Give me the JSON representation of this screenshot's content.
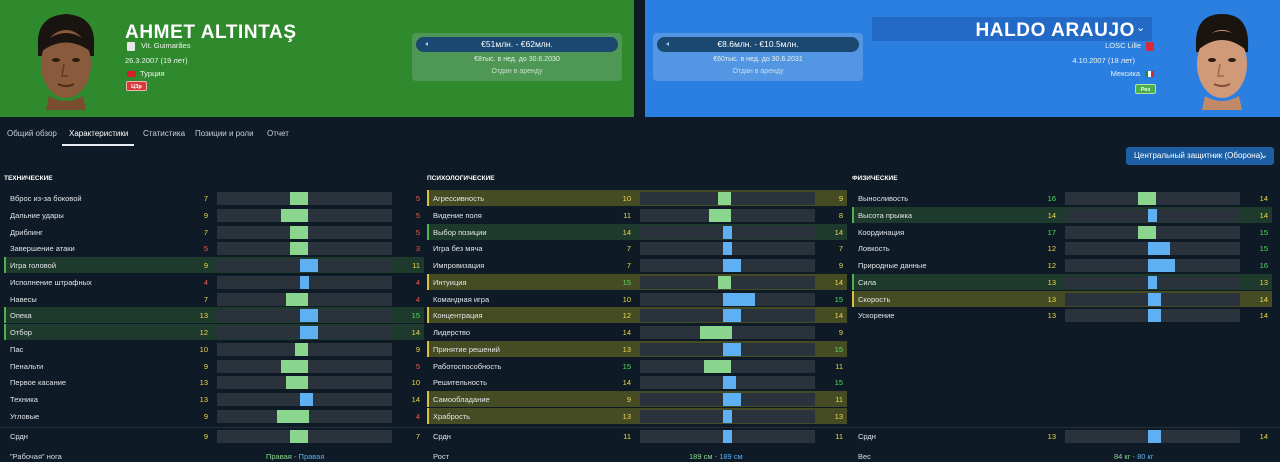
{
  "left_player": {
    "name": "AHMET ALTINTAŞ",
    "club": "Vit. Guimarães",
    "birth": "26.3.2007 (19 лет)",
    "nation": "Турция",
    "badge": "ЦЗр",
    "value": "€51млн. - €62млн.",
    "wage": "€8тыс. в нед. до 30.6.2030",
    "status": "Отдан в аренду"
  },
  "right_player": {
    "name": "HALDO ARAUJO",
    "club": "LOSC Lille",
    "birth": "4.10.2007 (18 лет)",
    "nation": "Мексика",
    "badge": "Рез",
    "value": "€8.6млн. - €10.5млн.",
    "wage": "€60тыс. в нед. до 30.6.2031",
    "status": "Отдан в аренду"
  },
  "tabs": [
    "Общий обзор",
    "Характеристики",
    "Статистика",
    "Позиции и роли",
    "Отчет"
  ],
  "role_select": "Центральный защитник (Оборона)",
  "colors": {
    "left_header": "#2f8a2e",
    "right_header": "#2b7fe0",
    "left_bar": "#8ad68f",
    "right_bar": "#5eb0f3",
    "hi_green": "#4fe05a",
    "hi_yellow": "#f0d84a",
    "low_red": "#f05a4a"
  },
  "sections": [
    {
      "title": "ТЕХНИЧЕСКИЕ",
      "attrs": [
        {
          "name": "Вброс из-за боковой",
          "left": 7,
          "right": 5,
          "hl": ""
        },
        {
          "name": "Дальние удары",
          "left": 9,
          "right": 5,
          "hl": ""
        },
        {
          "name": "Дриблинг",
          "left": 7,
          "right": 5,
          "hl": ""
        },
        {
          "name": "Завершение атаки",
          "left": 5,
          "right": 3,
          "hl": ""
        },
        {
          "name": "Игра головой",
          "left": 9,
          "right": 11,
          "hl": "g"
        },
        {
          "name": "Исполнение штрафных",
          "left": 4,
          "right": 4,
          "hl": ""
        },
        {
          "name": "Навесы",
          "left": 7,
          "right": 4,
          "hl": ""
        },
        {
          "name": "Опека",
          "left": 13,
          "right": 15,
          "hl": "g"
        },
        {
          "name": "Отбор",
          "left": 12,
          "right": 14,
          "hl": "g"
        },
        {
          "name": "Пас",
          "left": 10,
          "right": 9,
          "hl": ""
        },
        {
          "name": "Пенальти",
          "left": 9,
          "right": 5,
          "hl": ""
        },
        {
          "name": "Первое касание",
          "left": 13,
          "right": 10,
          "hl": ""
        },
        {
          "name": "Техника",
          "left": 13,
          "right": 14,
          "hl": ""
        },
        {
          "name": "Угловые",
          "left": 9,
          "right": 4,
          "hl": ""
        }
      ],
      "avg": {
        "name": "Срдн",
        "left": 9,
        "right": 7
      }
    },
    {
      "title": "ПСИХОЛОГИЧЕСКИЕ",
      "attrs": [
        {
          "name": "Агрессивность",
          "left": 10,
          "right": 9,
          "hl": "y"
        },
        {
          "name": "Видение поля",
          "left": 11,
          "right": 8,
          "hl": ""
        },
        {
          "name": "Выбор позиции",
          "left": 14,
          "right": 14,
          "hl": "g"
        },
        {
          "name": "Игра без мяча",
          "left": 7,
          "right": 7,
          "hl": ""
        },
        {
          "name": "Импровизация",
          "left": 7,
          "right": 9,
          "hl": ""
        },
        {
          "name": "Интуиция",
          "left": 15,
          "right": 14,
          "hl": "y"
        },
        {
          "name": "Командная игра",
          "left": 10,
          "right": 15,
          "hl": ""
        },
        {
          "name": "Концентрация",
          "left": 12,
          "right": 14,
          "hl": "y"
        },
        {
          "name": "Лидерство",
          "left": 14,
          "right": 9,
          "hl": ""
        },
        {
          "name": "Принятие решений",
          "left": 13,
          "right": 15,
          "hl": "y"
        },
        {
          "name": "Работоспособность",
          "left": 15,
          "right": 11,
          "hl": ""
        },
        {
          "name": "Решительность",
          "left": 14,
          "right": 15,
          "hl": ""
        },
        {
          "name": "Самообладание",
          "left": 9,
          "right": 11,
          "hl": "y"
        },
        {
          "name": "Храбрость",
          "left": 13,
          "right": 13,
          "hl": "y"
        }
      ],
      "avg": {
        "name": "Срдн",
        "left": 11,
        "right": 11
      }
    },
    {
      "title": "ФИЗИЧЕСКИЕ",
      "attrs": [
        {
          "name": "Выносливость",
          "left": 16,
          "right": 14,
          "hl": ""
        },
        {
          "name": "Высота прыжка",
          "left": 14,
          "right": 14,
          "hl": "g"
        },
        {
          "name": "Координация",
          "left": 17,
          "right": 15,
          "hl": ""
        },
        {
          "name": "Ловкость",
          "left": 12,
          "right": 15,
          "hl": ""
        },
        {
          "name": "Природные данные",
          "left": 12,
          "right": 16,
          "hl": ""
        },
        {
          "name": "Сила",
          "left": 13,
          "right": 13,
          "hl": "g"
        },
        {
          "name": "Скорость",
          "left": 13,
          "right": 14,
          "hl": "y"
        },
        {
          "name": "Ускорение",
          "left": 13,
          "right": 14,
          "hl": ""
        }
      ],
      "avg": {
        "name": "Срдн",
        "left": 13,
        "right": 14
      }
    }
  ],
  "footer": [
    {
      "label": "\"Рабочая\" нога",
      "left": "Правая",
      "right": "Правая"
    },
    {
      "label": "Рост",
      "left": "189 см",
      "right": "189 см"
    },
    {
      "label": "Вес",
      "left": "84 кг",
      "right": "80 кг"
    }
  ]
}
